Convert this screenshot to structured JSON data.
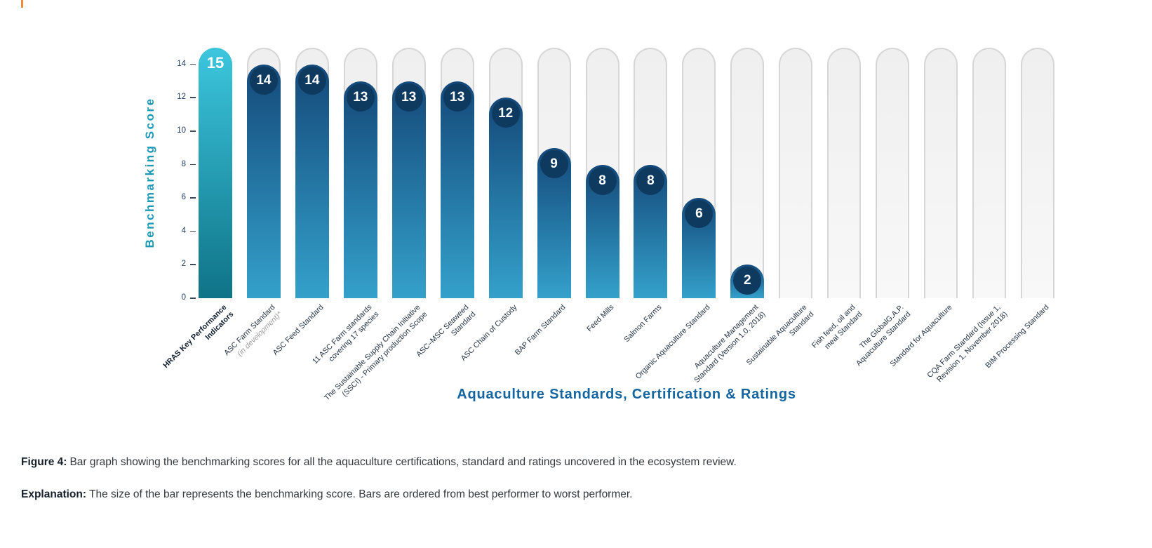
{
  "chart_data": {
    "type": "bar",
    "title": "",
    "xlabel": "Aquaculture Standards, Certification & Ratings",
    "ylabel": "Benchmarking Score",
    "ylim": [
      0,
      15
    ],
    "yticks": [
      0,
      2,
      4,
      6,
      8,
      10,
      12,
      14
    ],
    "track_max": 15,
    "grid": false,
    "categories": [
      "HRAS Key Performance Indicators",
      "ASC Farm Standard (in development)*",
      "ASC Feed Standard",
      "11 ASC Farm standards covering 17 species",
      "The Sustainable Supply Chain Initiative (SSCI) - Primary production Scope",
      "ASC–MSC Seaweed Standard",
      "ASC Chain of Custody",
      "BAP Farm Standard",
      "Feed Mills",
      "Salmon Farms",
      "Organic Aquaculture Standard",
      "Aquaculture Management Standard (Version 1.0, 2018)",
      "Sustainable Aquaculture Standard",
      "Fish feed, oil and meal Standard",
      "The GlobalG.A.P. Aquaculture Standard",
      "Standard for Aquaculture",
      "CQA Farm Standard (Issue 1, Revision 1, November 2018)",
      "BIM Processing Standard"
    ],
    "values": [
      15,
      14,
      14,
      13,
      13,
      13,
      12,
      9,
      8,
      8,
      6,
      2,
      0,
      0,
      0,
      0,
      0,
      0
    ],
    "bars": [
      {
        "lines": [
          "HRAS Key Performance",
          "Indicators"
        ],
        "value": 15,
        "highlight": true,
        "bold": true
      },
      {
        "lines": [
          "ASC Farm Standard",
          "(in development)*"
        ],
        "value": 14,
        "italic_lines": [
          1
        ]
      },
      {
        "lines": [
          "ASC Feed Standard"
        ],
        "value": 14
      },
      {
        "lines": [
          "11 ASC Farm standards",
          "covering 17 species"
        ],
        "value": 13
      },
      {
        "lines": [
          "The Sustainable Supply Chain Initiative",
          "(SSCI) - Primary production Scope"
        ],
        "value": 13
      },
      {
        "lines": [
          "ASC–MSC Seaweed",
          "Standard"
        ],
        "value": 13
      },
      {
        "lines": [
          "ASC Chain of Custody"
        ],
        "value": 12
      },
      {
        "lines": [
          "BAP Farm Standard"
        ],
        "value": 9
      },
      {
        "lines": [
          "Feed Mills"
        ],
        "value": 8
      },
      {
        "lines": [
          "Salmon Farms"
        ],
        "value": 8
      },
      {
        "lines": [
          "Organic Aquaculture Standard"
        ],
        "value": 6
      },
      {
        "lines": [
          "Aquaculture Management",
          "Standard (Version 1.0, 2018)"
        ],
        "value": 2
      },
      {
        "lines": [
          "Sustainable Aquaculture",
          "Standard"
        ],
        "value": 0
      },
      {
        "lines": [
          "Fish feed, oil and",
          "meal Standard"
        ],
        "value": 0
      },
      {
        "lines": [
          "The GlobalG.A.P.",
          "Aquaculture Standard"
        ],
        "value": 0
      },
      {
        "lines": [
          "Standard for Aquaculture"
        ],
        "value": 0
      },
      {
        "lines": [
          "CQA Farm Standard (Issue 1,",
          "Revision 1, November 2018)"
        ],
        "value": 0
      },
      {
        "lines": [
          "BIM Processing Standard"
        ],
        "value": 0
      }
    ],
    "colors": {
      "highlight_top": "#3cc6de",
      "highlight_bottom": "#0f7387",
      "bar_top": "#14497a",
      "bar_bottom": "#34a1cb",
      "bubble": "#0e3a60",
      "track_fill": "#f3f3f3",
      "track_border": "#d6d6d6",
      "axis_title": "#1566a0",
      "y_title": "#1b9ab8",
      "tick_text": "#1c3b5e",
      "label_text": "#223142"
    },
    "legend": null
  },
  "caption": {
    "figure_label": "Figure 4:",
    "figure_text": "Bar graph showing the benchmarking scores for all the aquaculture certifications, standard and ratings uncovered in the ecosystem review.",
    "explanation_label": "Explanation:",
    "explanation_text": "The size of the bar represents the benchmarking score. Bars are ordered from best performer to worst performer."
  }
}
